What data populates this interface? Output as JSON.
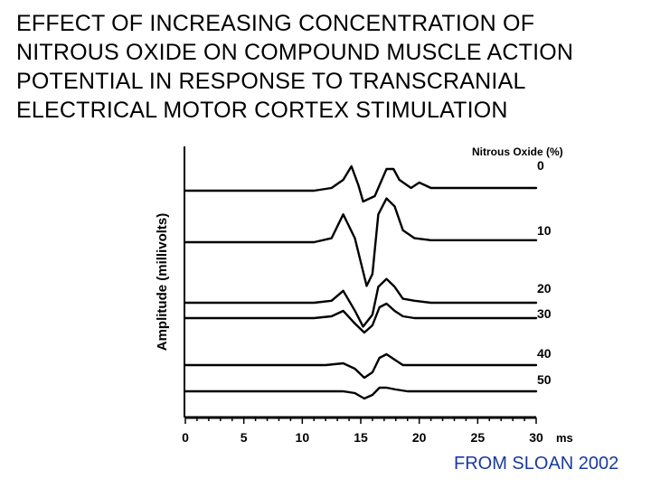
{
  "title_lines": [
    "EFFECT OF INCREASING CONCENTRATION OF",
    "NITROUS OXIDE ON COMPOUND MUSCLE ACTION",
    "POTENTIAL IN RESPONSE TO TRANSCRANIAL",
    "ELECTRICAL MOTOR CORTEX STIMULATION"
  ],
  "credit": "FROM SLOAN 2002",
  "chart_data": {
    "type": "line",
    "title": "",
    "xlabel": "ms",
    "ylabel": "Amplitude (millivolts)",
    "legend_title": "Nitrous Oxide (%)",
    "legend_placement": "right, beside each trace",
    "xlim": [
      0,
      30
    ],
    "x_ticks": [
      0,
      5,
      10,
      15,
      20,
      25,
      30
    ],
    "x_tick_labels": [
      "0",
      "5",
      "10",
      "15",
      "20",
      "25",
      "30"
    ],
    "grid": false,
    "series": [
      {
        "name": "0",
        "x": [
          0,
          11,
          12.5,
          13.5,
          14.2,
          14.8,
          15.2,
          16.2,
          17.2,
          17.8,
          18.3,
          19.3,
          20,
          21,
          30
        ],
        "y": [
          0,
          0,
          0.1,
          0.4,
          0.9,
          0.2,
          -0.4,
          -0.2,
          0.8,
          0.8,
          0.4,
          0.1,
          0.3,
          0.1,
          0.1
        ]
      },
      {
        "name": "10",
        "x": [
          0,
          11,
          12.5,
          13.5,
          14.5,
          15.5,
          16,
          16.5,
          17.2,
          17.9,
          18.6,
          19.6,
          21,
          30
        ],
        "y": [
          0,
          0,
          0.1,
          0.7,
          0.1,
          -1.1,
          -0.8,
          0.7,
          1.1,
          0.9,
          0.3,
          0.1,
          0.05,
          0.05
        ]
      },
      {
        "name": "20",
        "x": [
          0,
          11,
          12.5,
          13.5,
          14.5,
          15.2,
          16,
          16.5,
          17.2,
          17.9,
          18.6,
          19.6,
          21,
          30
        ],
        "y": [
          0,
          0,
          0.05,
          0.3,
          -0.2,
          -0.6,
          -0.3,
          0.4,
          0.6,
          0.4,
          0.1,
          0.05,
          0,
          0
        ]
      },
      {
        "name": "30",
        "x": [
          0,
          11,
          12.5,
          13.5,
          14.5,
          15.3,
          16,
          16.6,
          17.2,
          17.9,
          18.6,
          19.6,
          21,
          30
        ],
        "y": [
          0,
          0,
          0.05,
          0.2,
          -0.15,
          -0.4,
          -0.2,
          0.3,
          0.4,
          0.2,
          0.05,
          0,
          0,
          0
        ]
      },
      {
        "name": "40",
        "x": [
          0,
          12,
          13.5,
          14.5,
          15.3,
          16,
          16.6,
          17.2,
          17.9,
          18.6,
          19.6,
          21,
          30
        ],
        "y": [
          0,
          0,
          0.05,
          -0.1,
          -0.35,
          -0.2,
          0.2,
          0.3,
          0.15,
          0,
          0,
          0,
          0
        ]
      },
      {
        "name": "50",
        "x": [
          0,
          12,
          13.5,
          14.5,
          15.3,
          16,
          16.6,
          17.2,
          18,
          19,
          21,
          30
        ],
        "y": [
          0,
          0,
          0,
          -0.05,
          -0.2,
          -0.1,
          0.1,
          0.1,
          0.05,
          0,
          0,
          0
        ]
      }
    ]
  }
}
